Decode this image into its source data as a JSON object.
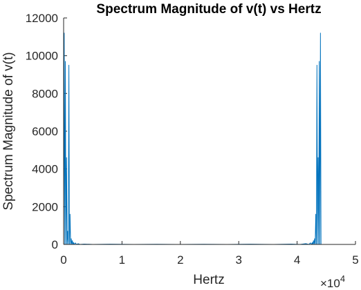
{
  "chart_data": {
    "type": "line",
    "title": "Spectrum Magnitude of v(t) vs Hertz",
    "xlabel": "Hertz",
    "ylabel": "Spectrum Magnitude of v(t)",
    "xlim": [
      0,
      50000
    ],
    "ylim": [
      0,
      12000
    ],
    "x_ticks": [
      0,
      10000,
      20000,
      30000,
      40000,
      50000
    ],
    "x_tick_labels": [
      "0",
      "1",
      "2",
      "3",
      "4",
      "5"
    ],
    "x_exponent_label": "×10",
    "x_exponent_power": "4",
    "y_ticks": [
      0,
      2000,
      4000,
      6000,
      8000,
      10000,
      12000
    ],
    "y_tick_labels": [
      "0",
      "2000",
      "4000",
      "6000",
      "8000",
      "10000",
      "12000"
    ],
    "grid": false,
    "series": [
      {
        "color": "#0072BD",
        "points": [
          [
            0,
            0
          ],
          [
            100,
            11200
          ],
          [
            200,
            0
          ],
          [
            300,
            9700
          ],
          [
            400,
            0
          ],
          [
            500,
            4600
          ],
          [
            600,
            0
          ],
          [
            700,
            700
          ],
          [
            800,
            0
          ],
          [
            900,
            9500
          ],
          [
            1000,
            0
          ],
          [
            1100,
            1600
          ],
          [
            1200,
            0
          ],
          [
            1300,
            300
          ],
          [
            1400,
            0
          ],
          [
            1500,
            200
          ],
          [
            1600,
            0
          ],
          [
            1700,
            100
          ],
          [
            1800,
            0
          ],
          [
            2000,
            80
          ],
          [
            2200,
            0
          ],
          [
            2500,
            40
          ],
          [
            2800,
            0
          ],
          [
            3500,
            20
          ],
          [
            5000,
            0
          ],
          [
            8000,
            15
          ],
          [
            12000,
            0
          ],
          [
            16000,
            10
          ],
          [
            20000,
            0
          ],
          [
            24000,
            10
          ],
          [
            28000,
            0
          ],
          [
            32000,
            12
          ],
          [
            36000,
            0
          ],
          [
            39000,
            20
          ],
          [
            40500,
            0
          ],
          [
            41500,
            40
          ],
          [
            42000,
            0
          ],
          [
            42300,
            80
          ],
          [
            42500,
            0
          ],
          [
            42600,
            100
          ],
          [
            42700,
            0
          ],
          [
            42800,
            200
          ],
          [
            42900,
            0
          ],
          [
            43000,
            300
          ],
          [
            43100,
            0
          ],
          [
            43200,
            1600
          ],
          [
            43300,
            0
          ],
          [
            43400,
            9500
          ],
          [
            43500,
            0
          ],
          [
            43600,
            4600
          ],
          [
            43700,
            0
          ],
          [
            43800,
            9700
          ],
          [
            43900,
            0
          ],
          [
            44000,
            11200
          ],
          [
            44100,
            0
          ]
        ]
      }
    ]
  }
}
